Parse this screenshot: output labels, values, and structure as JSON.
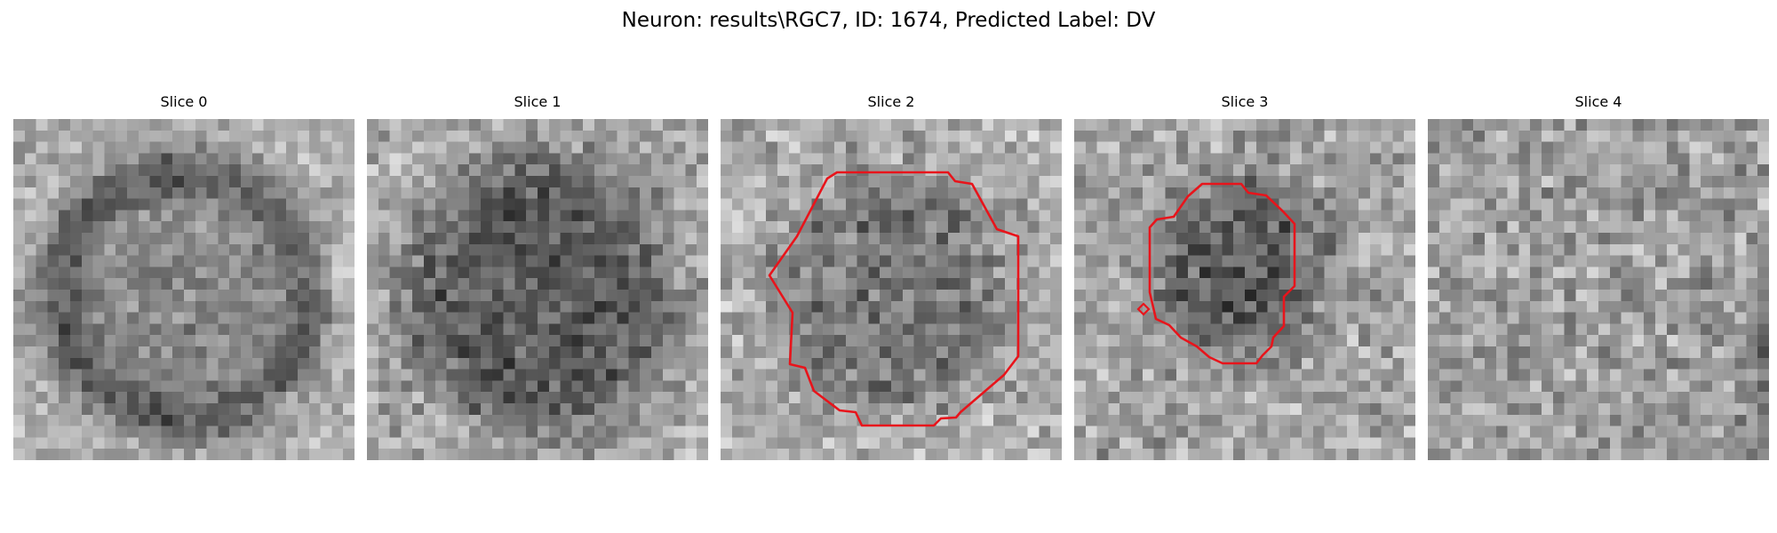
{
  "figure": {
    "title": "Neuron: results\\RGC7, ID: 1674, Predicted Label: DV"
  },
  "slices": [
    {
      "title": "Slice 0",
      "contour": false
    },
    {
      "title": "Slice 1",
      "contour": false
    },
    {
      "title": "Slice 2",
      "contour": true
    },
    {
      "title": "Slice 3",
      "contour": true
    },
    {
      "title": "Slice 4",
      "contour": false
    }
  ],
  "colors": {
    "contour": "#e8141b",
    "background": "#ffffff"
  }
}
